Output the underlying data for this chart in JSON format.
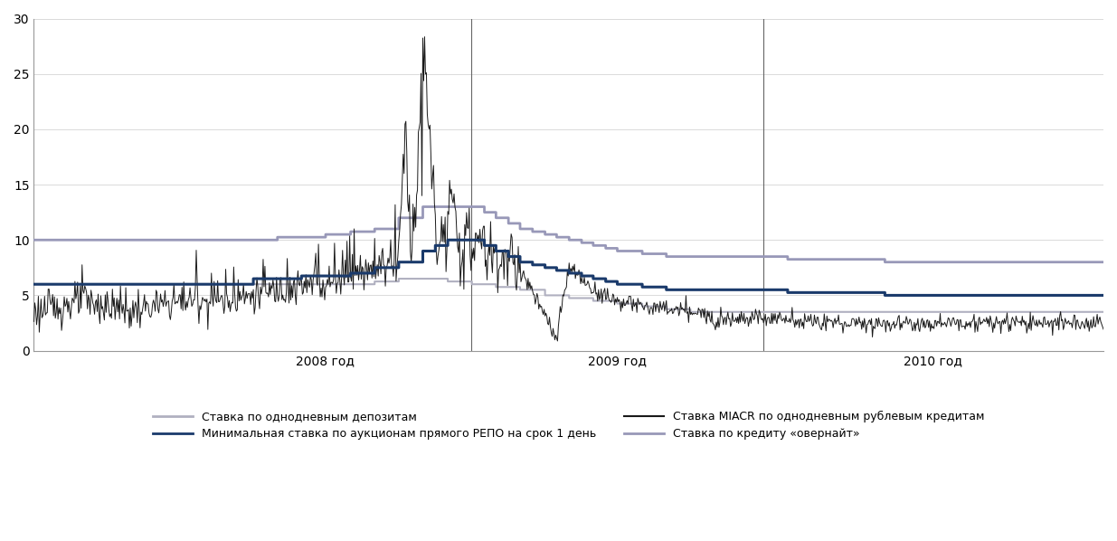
{
  "title": "",
  "xlabel": "",
  "ylabel": "",
  "ylim": [
    0,
    30
  ],
  "yticks": [
    0,
    5,
    10,
    15,
    20,
    25,
    30
  ],
  "background_color": "#ffffff",
  "grid_color": "#cccccc",
  "deposit_rate": {
    "color": "#b0b0c0",
    "linewidth": 1.5,
    "label": "Ставка по однодневным депозитам"
  },
  "miacr_rate": {
    "color": "#1a1a1a",
    "linewidth": 0.7,
    "label": "Ставка MIACR по однодневным рублевым кредитам"
  },
  "repo_rate": {
    "color": "#1a3a6b",
    "linewidth": 2.2,
    "label": "Минимальная ставка по аукционам прямого РЕПО на срок 1 день"
  },
  "overnight_loan": {
    "color": "#9898b8",
    "linewidth": 2.0,
    "label": "Ставка по кредиту «овернайт»"
  },
  "vline_color": "#666666",
  "xtick_labels": [
    "2008 год",
    "2009 год",
    "2010 год"
  ],
  "legend_fontsize": 9,
  "tick_fontsize": 10
}
